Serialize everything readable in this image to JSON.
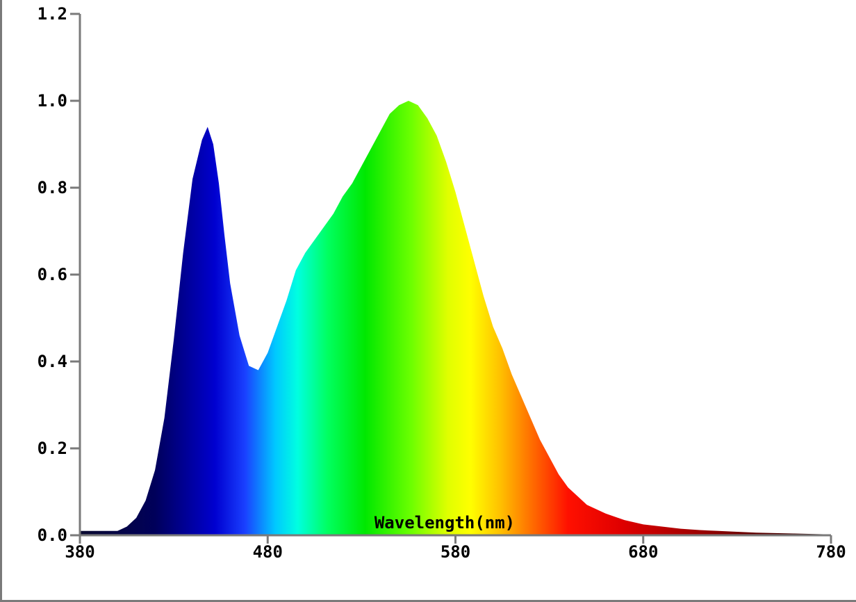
{
  "chart_data": {
    "type": "area",
    "title": "",
    "xlabel": "Wavelength(nm)",
    "ylabel": "",
    "xlim": [
      380,
      780
    ],
    "ylim": [
      0,
      1.2
    ],
    "x_ticks": [
      380,
      480,
      580,
      680,
      780
    ],
    "y_ticks": [
      "0.0",
      "0.2",
      "0.4",
      "0.6",
      "0.8",
      "1.0",
      "1.2"
    ],
    "grid": false,
    "fill": "wavelength-colored spectrum",
    "series": [
      {
        "x": [
          380,
          390,
          400,
          405,
          410,
          415,
          420,
          425,
          430,
          435,
          440,
          445,
          448,
          451,
          454,
          457,
          460,
          465,
          470,
          475,
          480,
          485,
          490,
          495,
          500,
          505,
          510,
          515,
          520,
          525,
          530,
          535,
          540,
          545,
          550,
          555,
          560,
          565,
          570,
          575,
          580,
          585,
          590,
          595,
          600,
          605,
          610,
          615,
          620,
          625,
          630,
          635,
          640,
          645,
          650,
          660,
          670,
          680,
          690,
          700,
          710,
          720,
          730,
          740,
          750,
          760,
          770,
          780
        ],
        "values": [
          0.01,
          0.01,
          0.01,
          0.02,
          0.04,
          0.08,
          0.15,
          0.27,
          0.45,
          0.65,
          0.82,
          0.91,
          0.94,
          0.9,
          0.81,
          0.69,
          0.58,
          0.46,
          0.39,
          0.38,
          0.42,
          0.48,
          0.54,
          0.61,
          0.65,
          0.68,
          0.71,
          0.74,
          0.78,
          0.81,
          0.85,
          0.89,
          0.93,
          0.97,
          0.99,
          1.0,
          0.99,
          0.96,
          0.92,
          0.86,
          0.79,
          0.71,
          0.63,
          0.55,
          0.48,
          0.43,
          0.37,
          0.32,
          0.27,
          0.22,
          0.18,
          0.14,
          0.11,
          0.09,
          0.07,
          0.05,
          0.035,
          0.025,
          0.02,
          0.015,
          0.012,
          0.01,
          0.008,
          0.006,
          0.005,
          0.004,
          0.003,
          0.002
        ]
      }
    ]
  }
}
